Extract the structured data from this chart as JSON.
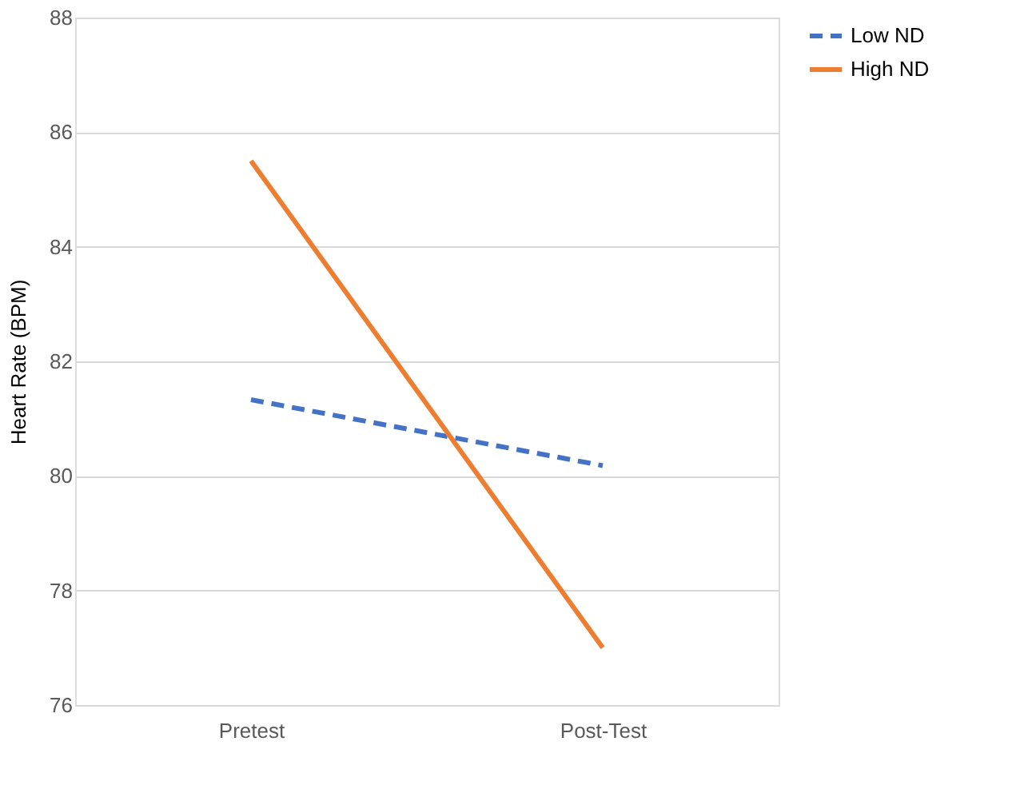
{
  "chart_data": {
    "type": "line",
    "ylabel": "Heart Rate (BPM)",
    "categories": [
      "Pretest",
      "Post-Test"
    ],
    "series": [
      {
        "name": "Low ND",
        "color": "#4472c4",
        "line_style": "dashed",
        "values": [
          81.33,
          80.18
        ]
      },
      {
        "name": "High ND",
        "color": "#ed7d31",
        "line_style": "solid",
        "values": [
          85.5,
          77.0
        ]
      }
    ],
    "ylim": [
      76,
      88
    ],
    "yticks": [
      76,
      78,
      80,
      82,
      84,
      86,
      88
    ],
    "grid": "y",
    "legend": "right",
    "marker": "none"
  }
}
